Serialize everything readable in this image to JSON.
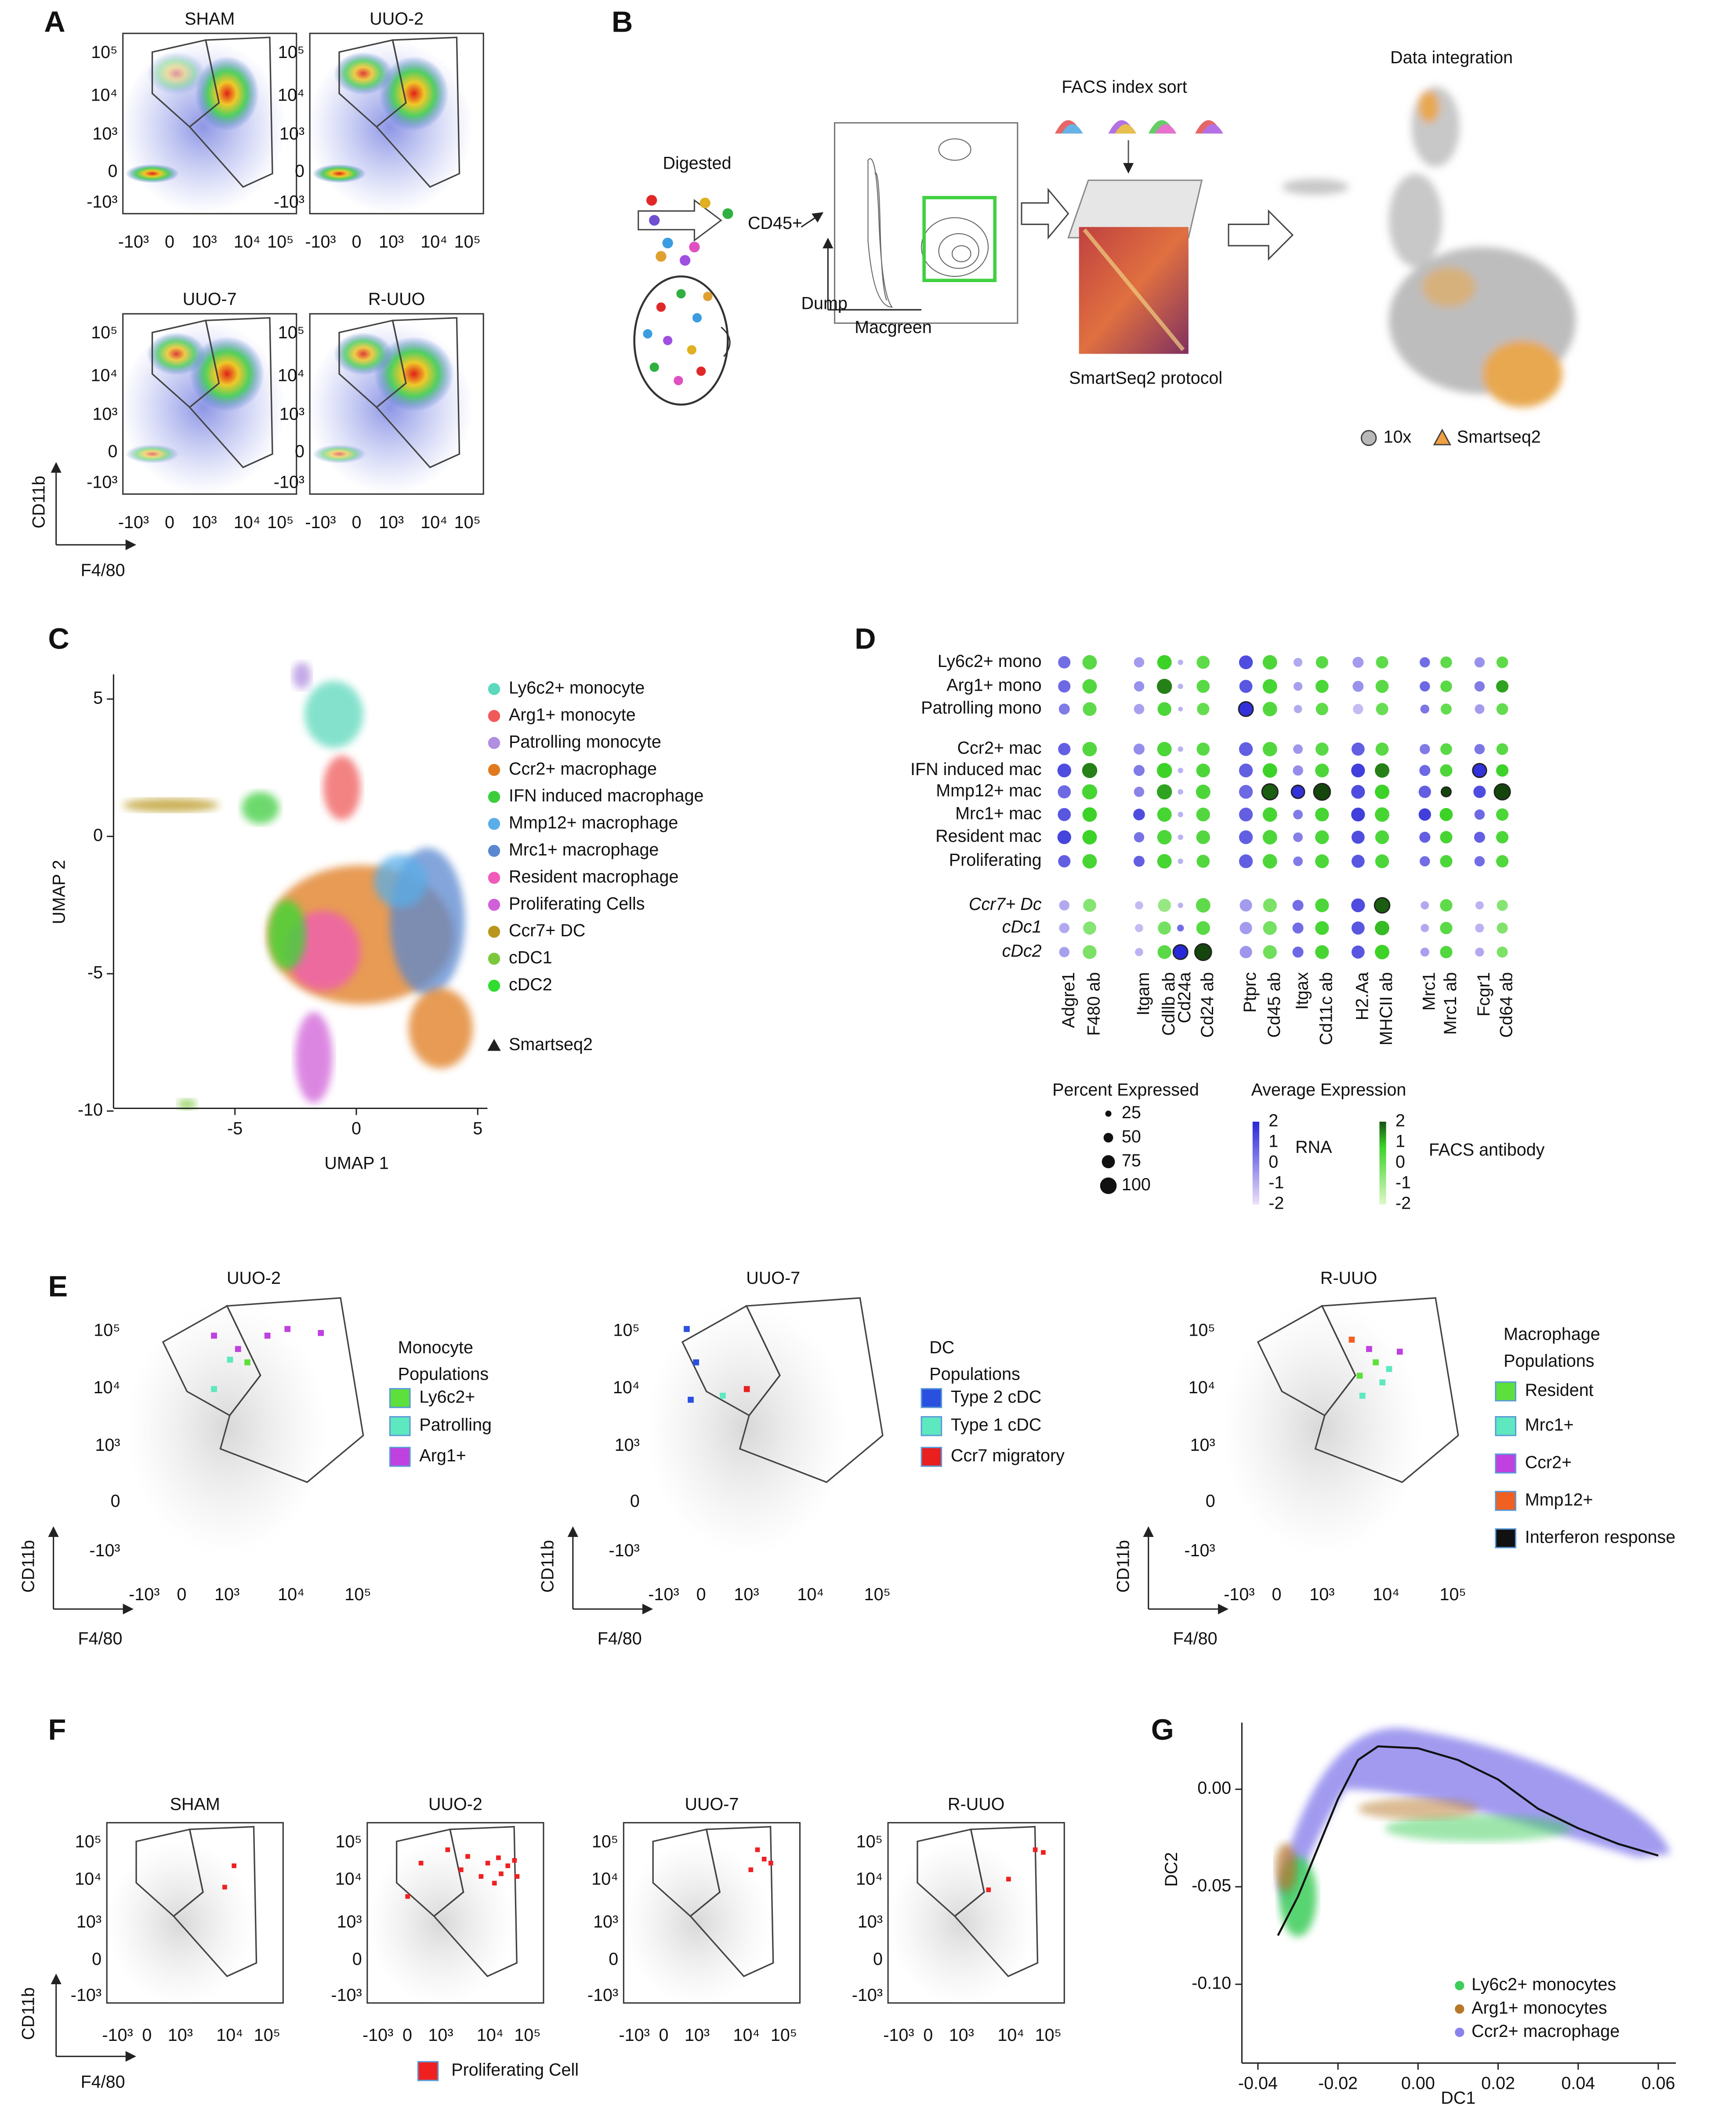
{
  "figure": {
    "A": {
      "label": "A",
      "titles": [
        "SHAM",
        "UUO-2",
        "UUO-7",
        "R-UUO"
      ],
      "yticks": [
        "10⁵",
        "10⁴",
        "10³",
        "0",
        "-10³"
      ],
      "xticks": [
        "-10³",
        "0",
        "10³",
        "10⁴",
        "10⁵"
      ],
      "ylabel": "CD11b",
      "xlabel": "F4/80"
    },
    "B": {
      "label": "B",
      "digested": "Digested",
      "cd45": "CD45+",
      "dump": "Dump",
      "macgreen": "Macgreen",
      "facs": "FACS index sort",
      "smartseq": "SmartSeq2 protocol",
      "integration": "Data integration",
      "legend": [
        {
          "name": "10x",
          "color": "#b8b8b8"
        },
        {
          "name": "Smartseq2",
          "color": "#f0a040"
        }
      ]
    },
    "C": {
      "label": "C",
      "type": "scatter",
      "xlabel": "UMAP 1",
      "ylabel": "UMAP 2",
      "xlim": [
        -10,
        5.4
      ],
      "ylim": [
        -9.9,
        5.9
      ],
      "xticks": [
        -5,
        0,
        5
      ],
      "yticks": [
        5,
        0,
        -5,
        -10
      ],
      "legend": [
        {
          "name": "Ly6c2+ monocyte",
          "color": "#5cd8bc"
        },
        {
          "name": "Arg1+ monocyte",
          "color": "#f05a5a"
        },
        {
          "name": "Patrolling monocyte",
          "color": "#b08ee0"
        },
        {
          "name": "Ccr2+ macrophage",
          "color": "#e07a1e"
        },
        {
          "name": "IFN induced macrophage",
          "color": "#3ccd3c"
        },
        {
          "name": "Mmp12+ macrophage",
          "color": "#5aaee8"
        },
        {
          "name": "Mrc1+ macrophage",
          "color": "#5a88d0"
        },
        {
          "name": "Resident macrophage",
          "color": "#f05ab8"
        },
        {
          "name": "Proliferating Cells",
          "color": "#d060d8"
        },
        {
          "name": "Ccr7+ DC",
          "color": "#b8961e"
        },
        {
          "name": "cDC1",
          "color": "#7cc83c"
        },
        {
          "name": "cDC2",
          "color": "#30dc30"
        }
      ],
      "marker_legend": "Smartseq2"
    },
    "D": {
      "label": "D",
      "rows": [
        "Ly6c2+ mono",
        "Arg1+ mono",
        "Patrolling mono",
        "Ccr2+ mac",
        "IFN induced mac",
        "Mmp12+ mac",
        "Mrc1+ mac",
        "Resident mac",
        "Proliferating",
        "Ccr7+ Dc",
        "cDc1",
        "cDc2"
      ],
      "columns": [
        "Adgre1",
        "F480 ab",
        "Itgam",
        "Cdllb ab",
        "Cd24a",
        "Cd24 ab",
        "Ptprc",
        "Cd45 ab",
        "Itgax",
        "Cd11c ab",
        "H2.Aa",
        "MHCII ab",
        "Mrc1",
        "Mrc1 ab",
        "Fcgr1",
        "Cd64 ab"
      ],
      "percent": [
        [
          70,
          85,
          55,
          85,
          20,
          75,
          80,
          85,
          45,
          70,
          60,
          70,
          55,
          65,
          55,
          65
        ],
        [
          70,
          85,
          55,
          90,
          20,
          75,
          75,
          85,
          45,
          75,
          60,
          75,
          55,
          65,
          55,
          70
        ],
        [
          60,
          80,
          55,
          80,
          15,
          70,
          85,
          85,
          40,
          70,
          55,
          70,
          45,
          60,
          50,
          65
        ],
        [
          70,
          85,
          60,
          85,
          20,
          75,
          80,
          85,
          50,
          75,
          75,
          75,
          55,
          65,
          55,
          65
        ],
        [
          80,
          90,
          60,
          90,
          20,
          80,
          80,
          85,
          55,
          80,
          80,
          85,
          60,
          70,
          80,
          70
        ],
        [
          75,
          90,
          55,
          90,
          20,
          85,
          80,
          95,
          75,
          100,
          80,
          85,
          70,
          50,
          70,
          95
        ],
        [
          75,
          85,
          65,
          85,
          20,
          80,
          80,
          85,
          50,
          80,
          80,
          85,
          70,
          75,
          55,
          70
        ],
        [
          80,
          85,
          55,
          85,
          20,
          80,
          80,
          85,
          50,
          80,
          75,
          80,
          60,
          70,
          60,
          70
        ],
        [
          70,
          85,
          60,
          85,
          20,
          75,
          80,
          85,
          50,
          80,
          75,
          80,
          55,
          70,
          55,
          70
        ],
        [
          55,
          75,
          40,
          75,
          20,
          85,
          70,
          80,
          60,
          80,
          80,
          90,
          40,
          70,
          40,
          60
        ],
        [
          55,
          75,
          40,
          75,
          30,
          80,
          70,
          80,
          60,
          80,
          75,
          85,
          40,
          70,
          45,
          60
        ],
        [
          55,
          80,
          40,
          80,
          85,
          100,
          70,
          80,
          60,
          80,
          75,
          85,
          45,
          70,
          45,
          60
        ]
      ],
      "expression": [
        [
          0.5,
          0.3,
          -0.5,
          0.8,
          -1,
          0.2,
          1.2,
          0.5,
          -0.8,
          0.3,
          -0.5,
          0.2,
          0.5,
          0.2,
          -0.3,
          0.2
        ],
        [
          0.6,
          0.4,
          -0.3,
          1.5,
          -1,
          0.3,
          1.0,
          0.6,
          -0.6,
          0.5,
          -0.3,
          0.3,
          0.6,
          0.3,
          0.2,
          1.2
        ],
        [
          0.2,
          0.2,
          -0.6,
          0.5,
          -1,
          0.1,
          1.8,
          0.4,
          -0.8,
          0.2,
          -1.2,
          0.0,
          0.3,
          0.1,
          -0.5,
          0.1
        ],
        [
          0.8,
          0.4,
          -0.2,
          0.5,
          -1,
          0.3,
          0.8,
          0.4,
          -0.4,
          0.3,
          0.8,
          0.3,
          0.2,
          0.3,
          0.3,
          0.3
        ],
        [
          1.2,
          1.5,
          0.2,
          0.8,
          -1,
          0.5,
          0.8,
          0.8,
          -0.2,
          0.5,
          1.5,
          1.5,
          0.6,
          0.5,
          1.8,
          0.8
        ],
        [
          0.6,
          0.6,
          0.0,
          1.2,
          -1,
          0.5,
          0.6,
          1.8,
          1.8,
          2.0,
          1.2,
          0.8,
          0.8,
          2.0,
          1.2,
          2.0
        ],
        [
          1.0,
          0.8,
          1.2,
          0.6,
          -1,
          0.4,
          0.8,
          0.6,
          0.2,
          0.6,
          1.5,
          0.6,
          1.5,
          0.8,
          0.6,
          0.5
        ],
        [
          1.4,
          0.8,
          0.4,
          0.5,
          -1,
          0.4,
          0.8,
          0.5,
          0.1,
          0.5,
          1.2,
          0.5,
          0.8,
          0.6,
          0.8,
          0.5
        ],
        [
          0.8,
          0.6,
          0.8,
          0.6,
          -1,
          0.4,
          0.8,
          0.5,
          0.2,
          0.5,
          1.0,
          0.5,
          0.5,
          0.5,
          0.5,
          0.4
        ],
        [
          -0.8,
          -0.5,
          -1.2,
          -0.8,
          -1,
          0.2,
          -0.5,
          -0.3,
          0.5,
          0.5,
          1.2,
          1.8,
          -0.8,
          0.2,
          -1.0,
          -0.5
        ],
        [
          -0.8,
          -0.5,
          -1.2,
          -0.2,
          0.5,
          0.3,
          -0.5,
          -0.2,
          0.5,
          0.6,
          1.0,
          1.0,
          -0.8,
          0.3,
          -1.0,
          -0.4
        ],
        [
          -0.6,
          -0.3,
          -1.0,
          0.3,
          2.0,
          2.0,
          -0.4,
          -0.1,
          0.6,
          0.6,
          1.0,
          0.8,
          -0.6,
          0.4,
          -0.8,
          -0.3
        ]
      ],
      "size_title": "Percent Expressed",
      "sizes": [
        25,
        50,
        75,
        100
      ],
      "color_title": "Average Expression",
      "scale_ticks": [
        2,
        1,
        0,
        -1,
        -2
      ],
      "rna": "RNA",
      "facs": "FACS antibody"
    },
    "E": {
      "label": "E",
      "yticks": [
        "10⁵",
        "10⁴",
        "10³",
        "0",
        "-10³"
      ],
      "xticks": [
        "-10³",
        "0",
        "10³",
        "10⁴",
        "10⁵"
      ],
      "ylabel": "CD11b",
      "xlabel": "F4/80",
      "plots": [
        {
          "title": "UUO-2",
          "legend_title": [
            "Monocyte",
            "Populations"
          ],
          "items": [
            {
              "name": "Ly6c2+",
              "color": "#5ee03c"
            },
            {
              "name": "Patrolling",
              "color": "#5ee8c0"
            },
            {
              "name": "Arg1+",
              "color": "#c040e0"
            }
          ]
        },
        {
          "title": "UUO-7",
          "legend_title": [
            "DC",
            "Populations"
          ],
          "items": [
            {
              "name": "Type 2 cDC",
              "color": "#2a50e0"
            },
            {
              "name": "Type 1 cDC",
              "color": "#5ee8c0"
            },
            {
              "name": "Ccr7 migratory",
              "color": "#e82020"
            }
          ]
        },
        {
          "title": "R-UUO",
          "legend_title": [
            "Macrophage",
            "Populations"
          ],
          "items": [
            {
              "name": "Resident",
              "color": "#5ee03c"
            },
            {
              "name": "Mrc1+",
              "color": "#5ee8c0"
            },
            {
              "name": "Ccr2+",
              "color": "#c040e0"
            },
            {
              "name": "Mmp12+",
              "color": "#f06020"
            },
            {
              "name": "Interferon response",
              "color": "#111111"
            }
          ]
        }
      ]
    },
    "F": {
      "label": "F",
      "titles": [
        "SHAM",
        "UUO-2",
        "UUO-7",
        "R-UUO"
      ],
      "yticks": [
        "10⁵",
        "10⁴",
        "10³",
        "0",
        "-10³"
      ],
      "xticks": [
        "-10³",
        "0",
        "10³",
        "10⁴",
        "10⁵"
      ],
      "ylabel": "CD11b",
      "xlabel": "F4/80",
      "legend": "Proliferating Cell",
      "color": "#f02020"
    },
    "G": {
      "label": "G",
      "type": "line",
      "xlabel": "DC1",
      "ylabel": "DC2",
      "xlim": [
        -0.044,
        0.0644
      ],
      "ylim": [
        -0.1404,
        0.0342
      ],
      "xticks": [
        -0.04,
        -0.02,
        {
          "value": 0,
          "label": "0.00"
        },
        0.02,
        0.04,
        0.06
      ],
      "yticks": [
        {
          "value": 0,
          "label": "0.00"
        },
        -0.05,
        {
          "value": -0.1,
          "label": "-0.10"
        }
      ],
      "legend": [
        {
          "name": "Ly6c2+ monocytes",
          "color": "#3ccd5a"
        },
        {
          "name": "Arg1+ monocytes",
          "color": "#b8782a"
        },
        {
          "name": "Ccr2+ macrophage",
          "color": "#8a82ec"
        }
      ],
      "trajectory": {
        "x": [
          -0.035,
          -0.03,
          -0.025,
          -0.02,
          -0.015,
          -0.01,
          0.0,
          0.01,
          0.02,
          0.03,
          0.04,
          0.05,
          0.06
        ],
        "y": [
          -0.075,
          -0.055,
          -0.03,
          -0.005,
          0.015,
          0.022,
          0.021,
          0.015,
          0.005,
          -0.01,
          -0.02,
          -0.028,
          -0.034
        ]
      }
    }
  }
}
